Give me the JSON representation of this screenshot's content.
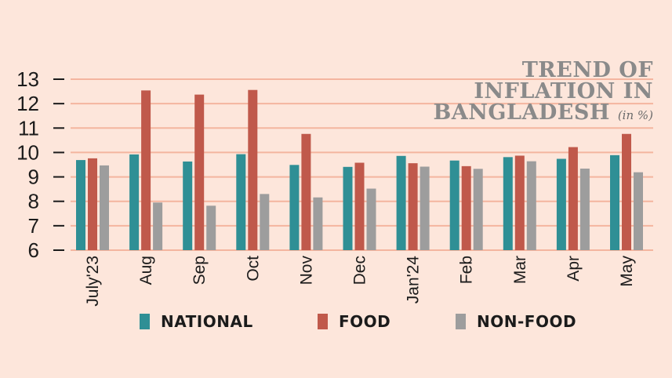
{
  "chart_data": {
    "type": "bar",
    "title": [
      "TREND OF",
      "INFLATION IN",
      "BANGLADESH"
    ],
    "title_unit": "(in %)",
    "categories": [
      "July'23",
      "Aug",
      "Sep",
      "Oct",
      "Nov",
      "Dec",
      "Jan'24",
      "Feb",
      "Mar",
      "Apr",
      "May"
    ],
    "series": [
      {
        "name": "NATIONAL",
        "color": "#2f8f95",
        "values": [
          9.69,
          9.92,
          9.63,
          9.93,
          9.49,
          9.41,
          9.86,
          9.67,
          9.81,
          9.74,
          9.89
        ]
      },
      {
        "name": "FOOD",
        "color": "#c0594b",
        "values": [
          9.76,
          12.54,
          12.37,
          12.56,
          10.76,
          9.58,
          9.56,
          9.44,
          9.87,
          10.22,
          10.76
        ]
      },
      {
        "name": "NON-FOOD",
        "color": "#9d9d9d",
        "values": [
          9.47,
          7.95,
          7.82,
          8.3,
          8.16,
          8.52,
          9.42,
          9.33,
          9.64,
          9.34,
          9.19
        ]
      }
    ],
    "ylim": [
      6,
      13
    ],
    "yticks": [
      6,
      7,
      8,
      9,
      10,
      11,
      12,
      13
    ],
    "grid": true,
    "legend": "bottom"
  }
}
